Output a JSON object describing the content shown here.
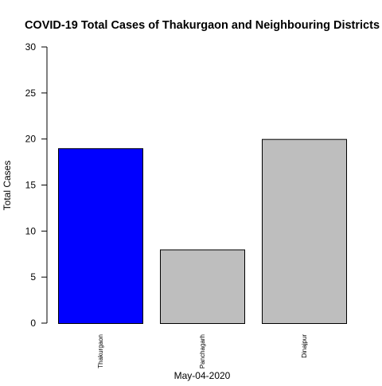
{
  "chart_data": {
    "type": "bar",
    "title": "COVID-19 Total Cases of Thakurgaon and Neighbouring Districts",
    "xlabel": "May-04-2020",
    "ylabel": "Total Cases",
    "categories": [
      "Thakurgaon",
      "Panchagarh",
      "Dinajpur"
    ],
    "values": [
      19,
      8,
      20
    ],
    "bar_colors": [
      "#0000ff",
      "#bebebe",
      "#bebebe"
    ],
    "ylim": [
      0,
      30
    ],
    "yticks": [
      0,
      5,
      10,
      15,
      20,
      25,
      30
    ],
    "grid": false,
    "legend": "none"
  }
}
